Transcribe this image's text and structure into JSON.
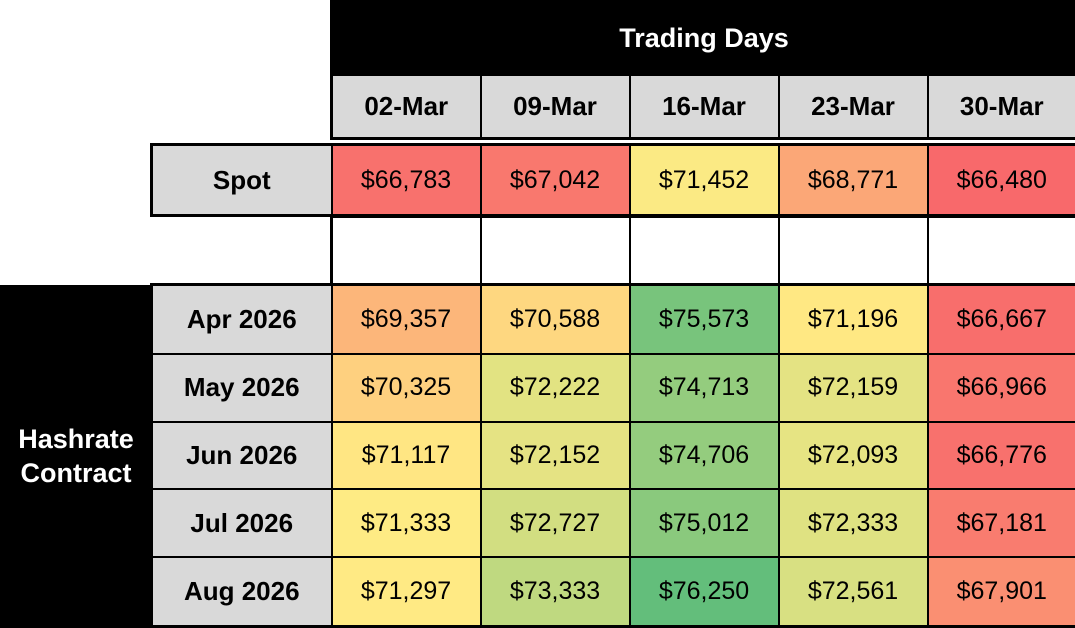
{
  "styles": {
    "header_bg": "#000000",
    "header_text": "#FFFFFF",
    "label_bg": "#D9D9D9",
    "border_color": "#000000"
  },
  "chart_data": {
    "type": "heatmap",
    "columns_header": "Trading Days",
    "row_group_header": "Hashrate Contract",
    "columns": [
      "02-Mar",
      "09-Mar",
      "16-Mar",
      "23-Mar",
      "30-Mar"
    ],
    "value_format": "usd",
    "spot_row": {
      "label": "Spot",
      "values": [
        66783,
        67042,
        71452,
        68771,
        66480
      ],
      "colors": [
        "#F8716D",
        "#F9786E",
        "#FBEA84",
        "#FBA777",
        "#F8696B"
      ]
    },
    "contract_rows": [
      {
        "label": "Apr 2026",
        "values": [
          69357,
          70588,
          75573,
          71196,
          66667
        ],
        "colors": [
          "#FCB67A",
          "#FED780",
          "#78C47C",
          "#FFE883",
          "#F86E6C"
        ]
      },
      {
        "label": "May 2026",
        "values": [
          70325,
          72222,
          74713,
          72159,
          66966
        ],
        "colors": [
          "#FED07F",
          "#E2E382",
          "#94CC7E",
          "#E4E383",
          "#F9766E"
        ]
      },
      {
        "label": "Jun 2026",
        "values": [
          71117,
          72152,
          74706,
          72093,
          66776
        ],
        "colors": [
          "#FFE683",
          "#E5E383",
          "#94CC7E",
          "#E6E483",
          "#F8716D"
        ]
      },
      {
        "label": "Jul 2026",
        "values": [
          71333,
          72727,
          75012,
          72333,
          67181
        ],
        "colors": [
          "#FEEB84",
          "#D2DE81",
          "#8AC97D",
          "#DFE282",
          "#F97C6F"
        ]
      },
      {
        "label": "Aug 2026",
        "values": [
          71297,
          73333,
          76250,
          72561,
          67901
        ],
        "colors": [
          "#FFEA84",
          "#BFD980",
          "#63BE7B",
          "#D8E082",
          "#FA8F72"
        ]
      }
    ],
    "colorscale": {
      "type": "3-color",
      "min": {
        "value": 66480,
        "color": "#F8696B"
      },
      "mid": {
        "value": 71315,
        "color": "#FFEB84"
      },
      "max": {
        "value": 76250,
        "color": "#63BE7B"
      }
    }
  }
}
